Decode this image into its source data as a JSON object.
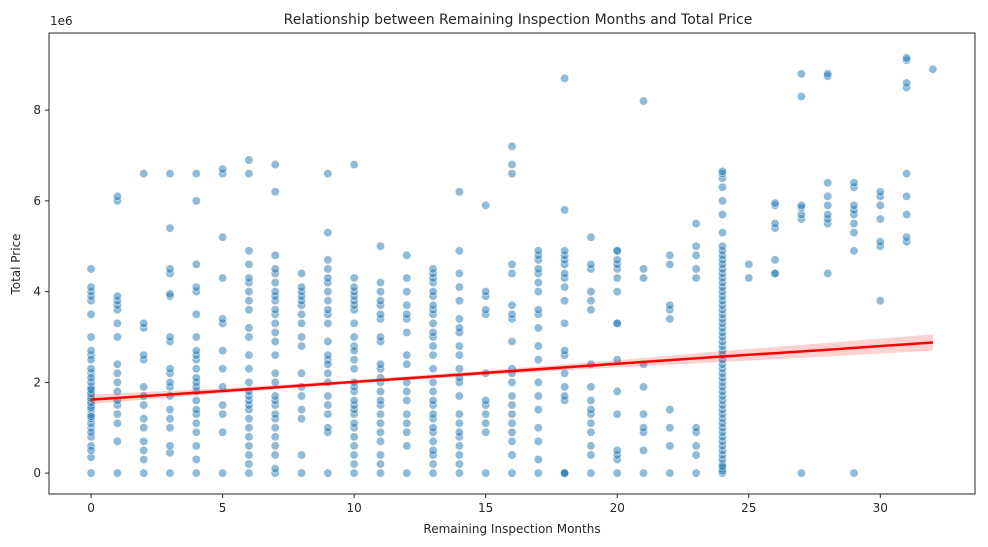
{
  "chart_data": {
    "type": "scatter",
    "title": "Relationship between Remaining Inspection Months and Total Price",
    "xlabel": "Remaining Inspection Months",
    "ylabel": "Total Price",
    "offset_text": "1e6",
    "xlim": [
      -1.6,
      33.6
    ],
    "ylim": [
      -0.46,
      9.7
    ],
    "x_ticks": [
      0,
      5,
      10,
      15,
      20,
      25,
      30
    ],
    "x_tick_labels": [
      "0",
      "5",
      "10",
      "15",
      "20",
      "25",
      "30"
    ],
    "y_ticks": [
      0,
      2,
      4,
      6,
      8
    ],
    "y_tick_labels": [
      "0",
      "2",
      "4",
      "6",
      "8"
    ],
    "grid": false,
    "point_color": "#1f77b4",
    "point_alpha": 0.5,
    "regression": {
      "color": "#ff0000",
      "band_color": "#ff0000",
      "band_alpha": 0.18,
      "x": [
        0,
        5,
        10,
        15,
        20,
        24,
        28,
        32
      ],
      "y": [
        1.62,
        1.81,
        2.01,
        2.21,
        2.41,
        2.57,
        2.72,
        2.88
      ],
      "y_lower": [
        1.52,
        1.76,
        1.97,
        2.16,
        2.33,
        2.45,
        2.57,
        2.7
      ],
      "y_upper": [
        1.73,
        1.87,
        2.05,
        2.26,
        2.49,
        2.69,
        2.87,
        3.06
      ]
    },
    "points": {
      "x": [
        0,
        0,
        0,
        0,
        0,
        0,
        0,
        0,
        0,
        0,
        0,
        0,
        0,
        0,
        0,
        0,
        0,
        0,
        0,
        0,
        0,
        0,
        0,
        0,
        0,
        0,
        0,
        0,
        0,
        0,
        0,
        0,
        0,
        0,
        0,
        0,
        1,
        1,
        1,
        1,
        1,
        1,
        1,
        1,
        1,
        1,
        1,
        1,
        1,
        1,
        1,
        1,
        1,
        1,
        2,
        2,
        2,
        2,
        2,
        2,
        2,
        2,
        2,
        2,
        2,
        2,
        2,
        2,
        3,
        3,
        3,
        3,
        3,
        3,
        3,
        3,
        3,
        3,
        3,
        3,
        3,
        3,
        3,
        3,
        3,
        3,
        3,
        4,
        4,
        4,
        4,
        4,
        4,
        4,
        4,
        4,
        4,
        4,
        4,
        4,
        4,
        4,
        4,
        4,
        4,
        4,
        4,
        4,
        4,
        4,
        5,
        5,
        5,
        5,
        5,
        5,
        5,
        5,
        5,
        5,
        5,
        5,
        5,
        6,
        6,
        6,
        6,
        6,
        6,
        6,
        6,
        6,
        6,
        6,
        6,
        6,
        6,
        6,
        6,
        6,
        6,
        6,
        6,
        6,
        6,
        6,
        6,
        6,
        6,
        7,
        7,
        7,
        7,
        7,
        7,
        7,
        7,
        7,
        7,
        7,
        7,
        7,
        7,
        7,
        7,
        7,
        7,
        7,
        7,
        7,
        7,
        7,
        7,
        7,
        7,
        7,
        7,
        8,
        8,
        8,
        8,
        8,
        8,
        8,
        8,
        8,
        8,
        8,
        8,
        8,
        8,
        8,
        8,
        8,
        9,
        9,
        9,
        9,
        9,
        9,
        9,
        9,
        9,
        9,
        9,
        9,
        9,
        9,
        9,
        9,
        9,
        9,
        9,
        9,
        9,
        9,
        9,
        10,
        10,
        10,
        10,
        10,
        10,
        10,
        10,
        10,
        10,
        10,
        10,
        10,
        10,
        10,
        10,
        10,
        10,
        10,
        10,
        10,
        10,
        10,
        10,
        10,
        10,
        10,
        10,
        11,
        11,
        11,
        11,
        11,
        11,
        11,
        11,
        11,
        11,
        11,
        11,
        11,
        11,
        11,
        11,
        11,
        11,
        11,
        11,
        11,
        11,
        11,
        12,
        12,
        12,
        12,
        12,
        12,
        12,
        12,
        12,
        12,
        12,
        12,
        12,
        12,
        12,
        12,
        12,
        13,
        13,
        13,
        13,
        13,
        13,
        13,
        13,
        13,
        13,
        13,
        13,
        13,
        13,
        13,
        13,
        13,
        13,
        13,
        13,
        13,
        13,
        13,
        13,
        13,
        13,
        13,
        13,
        14,
        14,
        14,
        14,
        14,
        14,
        14,
        14,
        14,
        14,
        14,
        14,
        14,
        14,
        14,
        14,
        14,
        14,
        14,
        14,
        14,
        14,
        15,
        15,
        15,
        15,
        15,
        15,
        15,
        15,
        15,
        15,
        15,
        15,
        16,
        16,
        16,
        16,
        16,
        16,
        16,
        16,
        16,
        16,
        16,
        16,
        16,
        16,
        16,
        16,
        16,
        16,
        16,
        16,
        17,
        17,
        17,
        17,
        17,
        17,
        17,
        17,
        17,
        17,
        17,
        17,
        17,
        17,
        17,
        17,
        17,
        17,
        17,
        18,
        18,
        18,
        18,
        18,
        18,
        18,
        18,
        18,
        18,
        18,
        18,
        18,
        18,
        18,
        18,
        18,
        18,
        18,
        18,
        19,
        19,
        19,
        19,
        19,
        19,
        19,
        19,
        19,
        19,
        19,
        19,
        19,
        19,
        19,
        19,
        20,
        20,
        20,
        20,
        20,
        20,
        20,
        20,
        20,
        20,
        20,
        20,
        20,
        20,
        20,
        20,
        21,
        21,
        21,
        21,
        21,
        21,
        21,
        21,
        21,
        21,
        22,
        22,
        22,
        22,
        22,
        22,
        22,
        22,
        22,
        23,
        23,
        23,
        23,
        23,
        23,
        23,
        23,
        23,
        23,
        24,
        24,
        24,
        24,
        24,
        24,
        24,
        24,
        24,
        24,
        24,
        24,
        24,
        24,
        24,
        24,
        24,
        24,
        24,
        24,
        24,
        24,
        24,
        24,
        24,
        24,
        24,
        24,
        24,
        24,
        24,
        24,
        24,
        24,
        24,
        24,
        24,
        24,
        24,
        24,
        24,
        24,
        24,
        24,
        24,
        24,
        24,
        24,
        24,
        24,
        24,
        24,
        24,
        24,
        24,
        24,
        24,
        24,
        24,
        24,
        25,
        25,
        26,
        26,
        26,
        26,
        26,
        26,
        26,
        27,
        27,
        27,
        27,
        27,
        27,
        27,
        28,
        28,
        28,
        28,
        28,
        28,
        28,
        28,
        28,
        29,
        29,
        29,
        29,
        29,
        29,
        29,
        29,
        29,
        30,
        30,
        30,
        30,
        30,
        30,
        30,
        31,
        31,
        31,
        31,
        31,
        31,
        31,
        31,
        31,
        32
      ],
      "y": [
        0.0,
        0.35,
        0.6,
        0.8,
        1.0,
        1.1,
        1.2,
        1.3,
        1.4,
        1.5,
        1.6,
        1.7,
        1.8,
        1.9,
        2.0,
        2.2,
        2.3,
        2.6,
        2.7,
        2.5,
        2.1,
        3.0,
        3.5,
        3.8,
        3.9,
        4.0,
        4.1,
        4.5,
        0.5,
        0.9,
        1.25,
        1.45,
        1.55,
        1.65,
        1.75,
        1.85,
        0.0,
        0.7,
        1.1,
        1.3,
        1.5,
        1.6,
        1.8,
        2.0,
        2.2,
        2.4,
        3.0,
        3.3,
        3.6,
        3.7,
        3.8,
        3.9,
        6.0,
        6.1,
        0.0,
        0.3,
        0.5,
        0.7,
        1.0,
        1.2,
        1.5,
        1.7,
        1.9,
        2.5,
        2.6,
        3.2,
        3.3,
        6.6,
        0.0,
        0.45,
        0.6,
        1.0,
        1.4,
        1.7,
        1.9,
        2.0,
        2.2,
        2.3,
        2.9,
        3.0,
        3.9,
        3.95,
        4.4,
        4.5,
        5.4,
        6.6,
        1.2,
        0.0,
        0.3,
        0.6,
        0.9,
        1.1,
        1.3,
        1.4,
        1.6,
        1.8,
        1.9,
        2.0,
        2.1,
        2.3,
        2.5,
        2.6,
        2.7,
        3.0,
        3.5,
        4.0,
        4.1,
        4.6,
        6.0,
        6.6,
        0.0,
        0.9,
        1.3,
        1.5,
        1.9,
        2.3,
        2.7,
        3.3,
        3.4,
        4.3,
        5.2,
        6.6,
        6.7,
        0.0,
        0.2,
        0.4,
        0.6,
        0.8,
        1.0,
        1.2,
        1.4,
        1.5,
        1.6,
        1.7,
        1.8,
        2.0,
        2.3,
        2.6,
        3.0,
        3.2,
        3.6,
        3.8,
        4.0,
        4.2,
        4.3,
        4.6,
        4.9,
        6.6,
        6.9,
        0.0,
        0.1,
        0.4,
        0.6,
        0.8,
        1.0,
        1.2,
        1.3,
        1.5,
        1.6,
        1.7,
        2.0,
        2.2,
        2.6,
        2.9,
        3.1,
        3.3,
        3.5,
        3.6,
        3.8,
        3.9,
        4.0,
        4.2,
        4.4,
        4.5,
        4.8,
        6.2,
        6.8,
        0.0,
        0.4,
        1.2,
        1.4,
        1.7,
        1.9,
        2.2,
        2.8,
        3.0,
        3.3,
        3.5,
        3.7,
        3.8,
        3.9,
        4.0,
        4.1,
        4.4,
        0.0,
        0.9,
        1.0,
        1.3,
        1.5,
        1.7,
        2.0,
        2.2,
        2.5,
        2.6,
        2.9,
        3.3,
        3.5,
        3.6,
        3.8,
        4.0,
        4.2,
        4.3,
        4.5,
        4.7,
        5.3,
        6.6,
        2.4,
        0.0,
        0.2,
        0.4,
        0.6,
        0.8,
        1.0,
        1.1,
        1.3,
        1.4,
        1.5,
        1.6,
        1.8,
        1.9,
        2.0,
        2.3,
        2.5,
        2.8,
        3.0,
        3.3,
        3.6,
        3.7,
        3.8,
        3.9,
        4.0,
        4.1,
        4.3,
        6.8,
        2.7,
        0.0,
        0.2,
        0.4,
        0.7,
        0.9,
        1.1,
        1.3,
        1.5,
        1.6,
        1.8,
        2.0,
        2.1,
        2.3,
        2.4,
        2.9,
        3.0,
        3.4,
        3.5,
        3.7,
        3.8,
        4.0,
        4.2,
        5.0,
        0.0,
        0.6,
        0.9,
        1.1,
        1.3,
        1.6,
        1.8,
        2.0,
        2.4,
        2.6,
        3.1,
        3.4,
        3.5,
        3.7,
        4.0,
        4.3,
        4.8,
        0.0,
        0.2,
        0.4,
        0.5,
        0.7,
        0.9,
        1.0,
        1.2,
        1.3,
        1.5,
        1.6,
        1.8,
        2.0,
        2.3,
        2.6,
        2.8,
        3.0,
        3.1,
        3.3,
        3.5,
        3.6,
        3.7,
        3.9,
        4.0,
        4.2,
        4.3,
        4.4,
        4.5,
        0.0,
        0.2,
        0.4,
        0.6,
        0.8,
        0.9,
        1.1,
        1.3,
        1.7,
        2.0,
        2.1,
        2.3,
        2.6,
        2.8,
        3.1,
        3.2,
        3.4,
        3.8,
        4.1,
        4.4,
        4.9,
        6.2,
        0.0,
        0.9,
        1.1,
        1.3,
        1.5,
        1.6,
        2.2,
        3.5,
        3.6,
        3.9,
        4.0,
        5.9,
        0.0,
        0.4,
        0.7,
        0.9,
        1.1,
        1.3,
        1.5,
        1.7,
        2.0,
        2.3,
        2.9,
        3.4,
        3.5,
        3.7,
        4.4,
        4.6,
        6.6,
        6.8,
        7.2,
        2.2,
        0.0,
        0.3,
        0.7,
        1.0,
        1.4,
        1.7,
        2.0,
        2.5,
        2.8,
        3.5,
        3.6,
        4.0,
        4.2,
        4.4,
        4.5,
        4.7,
        4.8,
        4.9,
        3.2,
        0.0,
        1.6,
        1.7,
        1.9,
        2.6,
        2.7,
        3.3,
        3.8,
        4.1,
        4.3,
        4.4,
        4.6,
        4.7,
        4.8,
        4.9,
        5.8,
        8.7,
        0.0,
        2.2,
        0.0,
        0.0,
        0.4,
        0.6,
        0.9,
        1.1,
        1.3,
        1.4,
        1.6,
        1.9,
        2.4,
        3.6,
        3.8,
        4.0,
        4.5,
        4.6,
        5.2,
        0.0,
        0.3,
        0.4,
        0.5,
        1.3,
        1.8,
        2.5,
        3.3,
        3.3,
        4.0,
        4.3,
        4.5,
        4.6,
        4.7,
        4.9,
        4.9,
        0.0,
        0.5,
        0.9,
        1.0,
        1.3,
        1.9,
        2.4,
        4.3,
        4.5,
        8.2,
        0.0,
        0.6,
        1.0,
        1.4,
        3.4,
        3.6,
        3.7,
        4.6,
        4.8,
        0.0,
        0.4,
        0.6,
        0.9,
        1.0,
        4.3,
        4.5,
        4.8,
        5.0,
        5.5,
        0.0,
        0.1,
        0.2,
        0.3,
        0.4,
        0.5,
        0.6,
        0.7,
        0.8,
        0.9,
        1.0,
        1.1,
        1.2,
        1.3,
        1.4,
        1.5,
        1.6,
        1.7,
        1.8,
        1.9,
        2.0,
        2.1,
        2.2,
        2.3,
        2.4,
        2.5,
        2.6,
        2.7,
        2.8,
        2.9,
        3.0,
        3.1,
        3.2,
        3.3,
        3.4,
        3.5,
        3.6,
        3.7,
        3.8,
        3.9,
        4.0,
        4.1,
        4.2,
        4.3,
        4.4,
        4.5,
        4.6,
        4.7,
        4.8,
        4.9,
        5.0,
        5.3,
        5.7,
        6.0,
        6.3,
        6.5,
        6.6,
        6.65,
        0.05,
        0.15,
        4.3,
        4.6,
        4.4,
        4.7,
        5.4,
        5.5,
        5.9,
        5.95,
        4.4,
        0.0,
        5.6,
        5.7,
        5.85,
        5.9,
        8.3,
        8.8,
        4.4,
        5.5,
        5.6,
        5.7,
        5.9,
        6.1,
        6.4,
        8.75,
        8.8,
        0.0,
        4.9,
        5.3,
        5.5,
        5.7,
        5.8,
        5.9,
        6.3,
        6.4,
        3.8,
        5.0,
        5.1,
        5.6,
        5.9,
        6.1,
        6.2,
        5.1,
        5.2,
        5.7,
        6.1,
        6.6,
        8.5,
        8.6,
        9.1,
        9.15,
        8.9
      ]
    }
  }
}
